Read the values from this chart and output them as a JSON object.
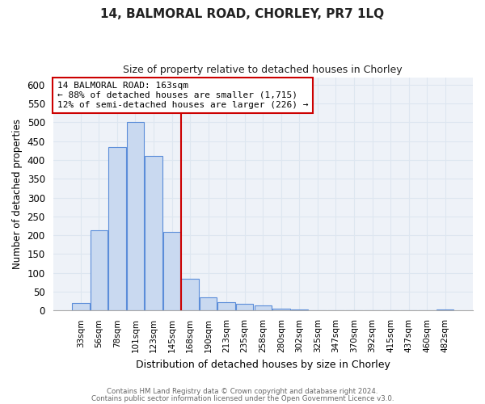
{
  "title1": "14, BALMORAL ROAD, CHORLEY, PR7 1LQ",
  "title2": "Size of property relative to detached houses in Chorley",
  "xlabel": "Distribution of detached houses by size in Chorley",
  "ylabel": "Number of detached properties",
  "bin_labels": [
    "33sqm",
    "56sqm",
    "78sqm",
    "101sqm",
    "123sqm",
    "145sqm",
    "168sqm",
    "190sqm",
    "213sqm",
    "235sqm",
    "258sqm",
    "280sqm",
    "302sqm",
    "325sqm",
    "347sqm",
    "370sqm",
    "392sqm",
    "415sqm",
    "437sqm",
    "460sqm",
    "482sqm"
  ],
  "bar_heights": [
    20,
    213,
    435,
    500,
    410,
    208,
    85,
    35,
    22,
    18,
    13,
    5,
    2,
    0,
    0,
    0,
    0,
    0,
    0,
    0,
    3
  ],
  "bar_color": "#c9d9f0",
  "bar_edge_color": "#5b8dd9",
  "property_line_x": 5.5,
  "property_line_color": "#cc0000",
  "annotation_line1": "14 BALMORAL ROAD: 163sqm",
  "annotation_line2": "← 88% of detached houses are smaller (1,715)",
  "annotation_line3": "12% of semi-detached houses are larger (226) →",
  "annotation_box_color": "#ffffff",
  "annotation_box_edge": "#cc0000",
  "ylim": [
    0,
    620
  ],
  "yticks": [
    0,
    50,
    100,
    150,
    200,
    250,
    300,
    350,
    400,
    450,
    500,
    550,
    600
  ],
  "footer1": "Contains HM Land Registry data © Crown copyright and database right 2024.",
  "footer2": "Contains public sector information licensed under the Open Government Licence v3.0.",
  "grid_color": "#dde6f0",
  "background_color": "#eef2f8"
}
